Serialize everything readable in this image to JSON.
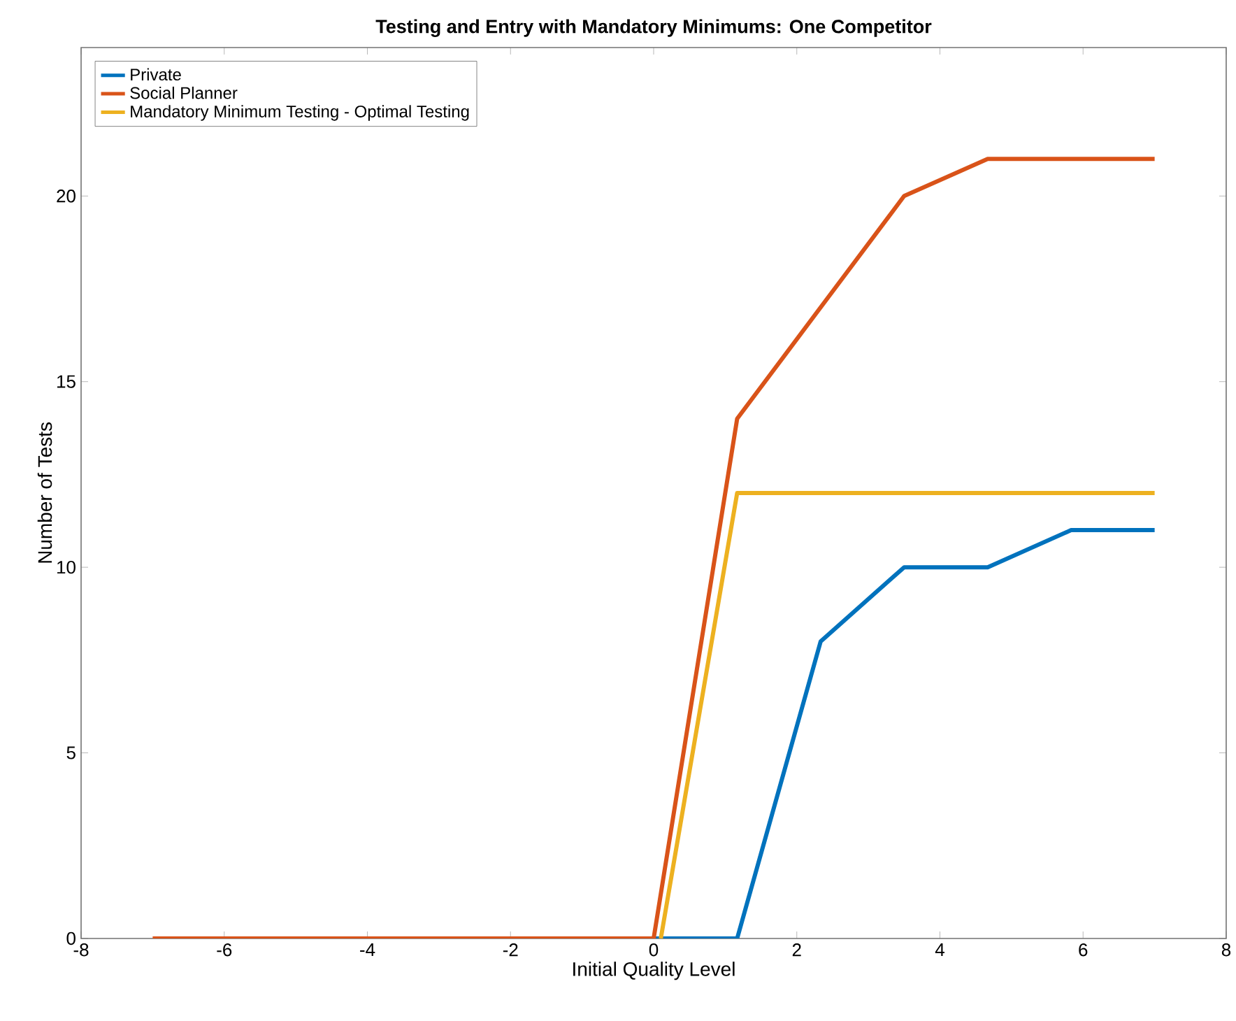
{
  "chart_data": {
    "type": "line",
    "title": "Testing and Entry with Mandatory Minimums: One Competitor",
    "xlabel": "Initial Quality Level",
    "ylabel": "Number of Tests",
    "xlim": [
      -8,
      8
    ],
    "xticks": [
      -8,
      -6,
      -4,
      -2,
      0,
      2,
      4,
      6,
      8
    ],
    "ylim": [
      0,
      24
    ],
    "yticks": [
      0,
      5,
      10,
      15,
      20
    ],
    "legend": "top left",
    "grid": false,
    "line_style": "solid",
    "marker": "none",
    "series": [
      {
        "name": "Private",
        "color": "#0072bd",
        "x": [
          0,
          1.1667,
          2.3333,
          3.5,
          4.6667,
          5.8333,
          7
        ],
        "values": [
          0,
          0,
          8,
          10,
          10,
          11,
          11
        ]
      },
      {
        "name": "Social Planner",
        "color": "#d95319",
        "x": [
          -7,
          -5.8333,
          -4.6667,
          -3.5,
          -2.3333,
          -1.1667,
          0,
          1.1667,
          2.3333,
          3.5,
          4.6667,
          5.8333,
          7
        ],
        "values": [
          0,
          0,
          0,
          0,
          0,
          0,
          0,
          14,
          17,
          20,
          21,
          21,
          21
        ]
      },
      {
        "name": "Mandatory Minimum Testing - Optimal Testing",
        "color": "#edb120",
        "x": [
          0.1,
          1.1667,
          2.3333,
          3.5,
          4.6667,
          5.8333,
          7
        ],
        "values": [
          0,
          12,
          12,
          12,
          12,
          12,
          12
        ]
      }
    ]
  }
}
